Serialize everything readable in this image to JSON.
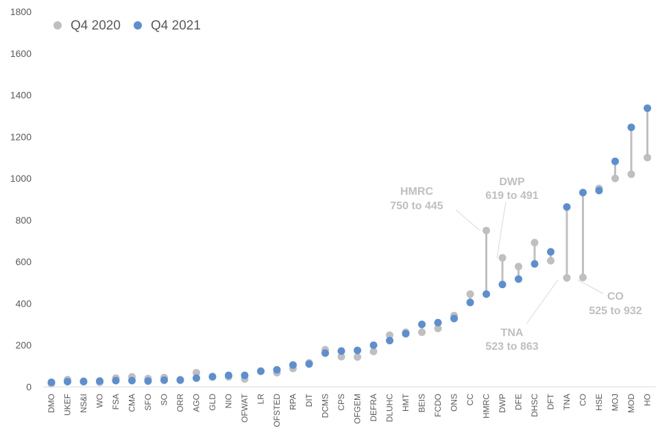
{
  "chart_data": {
    "type": "dumbbell",
    "title": "",
    "xlabel": "",
    "ylabel": "",
    "ylim": [
      0,
      1800
    ],
    "yticks": [
      0,
      200,
      400,
      600,
      800,
      1000,
      1200,
      1400,
      1600,
      1800
    ],
    "grid": false,
    "legend_position": "top-left",
    "categories": [
      "DMO",
      "UKEF",
      "NS&I",
      "WO",
      "FSA",
      "CMA",
      "SFO",
      "SO",
      "ORR",
      "AGO",
      "GLD",
      "NIO",
      "OFWAT",
      "LR",
      "OFSTED",
      "RPA",
      "DIT",
      "DCMS",
      "CPS",
      "OFGEM",
      "DEFRA",
      "DLUHC",
      "HMT",
      "BEIS",
      "FCDO",
      "ONS",
      "CC",
      "HMRC",
      "DWP",
      "DFE",
      "DHSC",
      "DFT",
      "TNA",
      "CO",
      "HSE",
      "MOJ",
      "MOD",
      "HO"
    ],
    "series": [
      {
        "name": "Q4 2020",
        "color": "#bfbfbf",
        "values": [
          15,
          35,
          28,
          22,
          42,
          48,
          40,
          45,
          35,
          68,
          50,
          48,
          38,
          76,
          68,
          88,
          115,
          178,
          145,
          143,
          170,
          248,
          262,
          262,
          280,
          342,
          445,
          750,
          619,
          577,
          692,
          605,
          523,
          525,
          952,
          1000,
          1020,
          1100
        ]
      },
      {
        "name": "Q4 2021",
        "color": "#5b8fd3",
        "values": [
          22,
          25,
          25,
          28,
          30,
          30,
          28,
          32,
          32,
          42,
          48,
          55,
          55,
          75,
          82,
          105,
          110,
          162,
          172,
          175,
          200,
          222,
          255,
          300,
          308,
          328,
          405,
          445,
          491,
          517,
          590,
          648,
          863,
          932,
          942,
          1082,
          1245,
          1337
        ]
      }
    ],
    "annotations": [
      {
        "category": "HMRC",
        "name": "HMRC",
        "range": "750 to 445"
      },
      {
        "category": "DWP",
        "name": "DWP",
        "range": "619 to 491"
      },
      {
        "category": "TNA",
        "name": "TNA",
        "range": "523 to 863"
      },
      {
        "category": "CO",
        "name": "CO",
        "range": "525 to 932"
      }
    ]
  }
}
